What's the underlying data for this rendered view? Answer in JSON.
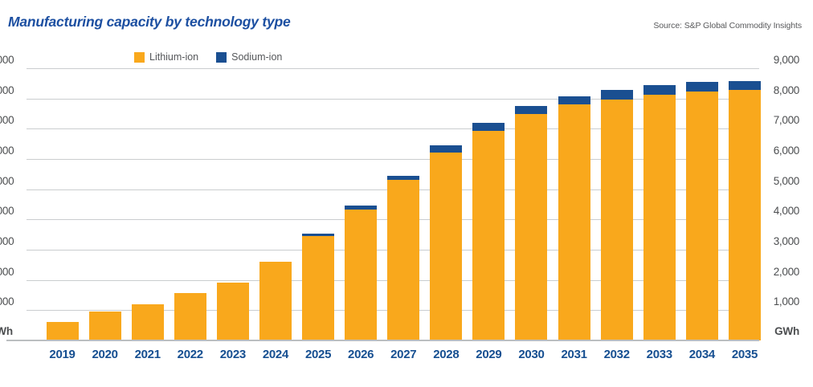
{
  "title": "Manufacturing capacity by technology type",
  "source": "Source: S&P Global Commodity Insights",
  "legend": {
    "lithium": {
      "label": "Lithium-ion",
      "color": "#F9A81C"
    },
    "sodium": {
      "label": "Sodium-ion",
      "color": "#1A4F91"
    }
  },
  "axis": {
    "unit_label": "GWh",
    "y_ticks": [
      "9,000",
      "8,000",
      "7,000",
      "6,000",
      "5,000",
      "4,000",
      "3,000",
      "2,000",
      "1,000"
    ],
    "y_tick_values": [
      9000,
      8000,
      7000,
      6000,
      5000,
      4000,
      3000,
      2000,
      1000
    ]
  },
  "chart_data": {
    "type": "bar",
    "stacked": true,
    "title": "Manufacturing capacity by technology type",
    "xlabel": "",
    "ylabel": "GWh",
    "ylim": [
      0,
      9000
    ],
    "grid": true,
    "legend_position": "top",
    "categories": [
      "2019",
      "2020",
      "2021",
      "2022",
      "2023",
      "2024",
      "2025",
      "2026",
      "2027",
      "2028",
      "2029",
      "2030",
      "2031",
      "2032",
      "2033",
      "2034",
      "2035"
    ],
    "series": [
      {
        "name": "Lithium-ion",
        "color": "#F9A81C",
        "values": [
          600,
          950,
          1200,
          1575,
          1900,
          2600,
          3450,
          4325,
          5300,
          6200,
          6925,
          7475,
          7800,
          7975,
          8135,
          8240,
          8275
        ]
      },
      {
        "name": "Sodium-ion",
        "color": "#1A4F91",
        "values": [
          0,
          0,
          0,
          0,
          0,
          0,
          75,
          125,
          150,
          260,
          275,
          275,
          280,
          295,
          310,
          310,
          300
        ]
      }
    ]
  }
}
